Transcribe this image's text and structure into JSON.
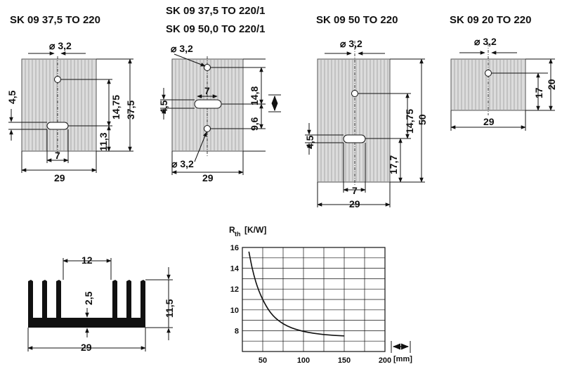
{
  "drawings": [
    {
      "title_lines": [
        "SK 09 37,5 TO 220"
      ],
      "dims": {
        "hole": "⌀ 3,2",
        "slot_h": "4,5",
        "hole_to_slot": "14,75",
        "height": "37,5",
        "slot_to_base": "11,3",
        "slot_w": "7",
        "width": "29"
      }
    },
    {
      "title_lines": [
        "SK 09 37,5 TO 220/1",
        "SK 09 50,0 TO 220/1"
      ],
      "dims": {
        "hole_top": "⌀ 3,2",
        "slot_h": "4,5",
        "slot_w": "7",
        "hole_to_slot": "14,8",
        "slot_to_hole": "9,6",
        "hole_bottom": "⌀ 3,2",
        "width": "29"
      }
    },
    {
      "title_lines": [
        "SK 09 50 TO 220"
      ],
      "dims": {
        "hole": "⌀ 3,2",
        "hole_to_slot": "14,75",
        "height": "50",
        "slot_h": "4,5",
        "slot_to_base": "17,7",
        "slot_w": "7",
        "width": "29"
      }
    },
    {
      "title_lines": [
        "SK 09 20 TO 220"
      ],
      "dims": {
        "hole": "⌀ 3,2",
        "hole_to_base": "17",
        "height": "20",
        "width": "29"
      }
    }
  ],
  "profile": {
    "dims": {
      "fin_gap": "12",
      "base": "2,5",
      "height": "11,5",
      "width": "29"
    }
  },
  "chart_data": {
    "type": "line",
    "title": "",
    "ylabel_main": "R",
    "ylabel_sub": "th",
    "ylabel_unit": "[K/W]",
    "xlabel": "[mm]",
    "xlim": [
      25,
      200
    ],
    "ylim": [
      6,
      16
    ],
    "x_tick_labels": [
      "50",
      "100",
      "150",
      "200"
    ],
    "y_tick_labels": [
      "16",
      "14",
      "12",
      "10",
      "8"
    ],
    "grid": true,
    "series": [
      {
        "name": "",
        "points": [
          [
            33,
            15.6
          ],
          [
            38,
            13.6
          ],
          [
            45,
            11.8
          ],
          [
            55,
            10.2
          ],
          [
            65,
            9.2
          ],
          [
            80,
            8.4
          ],
          [
            100,
            7.9
          ],
          [
            125,
            7.6
          ],
          [
            150,
            7.5
          ]
        ]
      }
    ],
    "colors": {
      "curve": "#111111",
      "grid": "#111111",
      "body": "#dcdcdc"
    }
  }
}
